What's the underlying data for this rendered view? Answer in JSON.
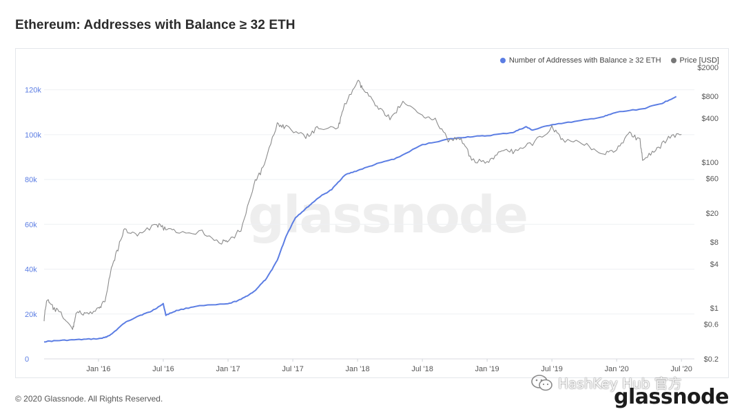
{
  "page": {
    "title": "Ethereum: Addresses with Balance ≥ 32 ETH",
    "footer": "© 2020 Glassnode. All Rights Reserved.",
    "brand": "glassnode",
    "watermark": "glassnode",
    "overlay_watermark": "HashKey Hub 官方"
  },
  "colors": {
    "addresses": "#5b7de3",
    "price": "#8a8a8a",
    "left_axis_text": "#5b7de3",
    "right_axis_text": "#555555"
  },
  "legend": [
    {
      "label": "Number of Addresses with Balance ≥ 32 ETH",
      "color": "#5b7de3"
    },
    {
      "label": "Price [USD]",
      "color": "#777777"
    }
  ],
  "chart_data": {
    "type": "line",
    "title": "Ethereum: Addresses with Balance ≥ 32 ETH",
    "legend_position": "top-right",
    "grid": "horizontal",
    "x_ticks": [
      "Jan '16",
      "Jul '16",
      "Jan '17",
      "Jul '17",
      "Jan '18",
      "Jul '18",
      "Jan '19",
      "Jul '19",
      "Jan '20",
      "Jul '20"
    ],
    "x_tick_values": [
      2016.0,
      2016.5,
      2017.0,
      2017.5,
      2018.0,
      2018.5,
      2019.0,
      2019.5,
      2020.0,
      2020.5
    ],
    "xlim": [
      2015.58,
      2020.6
    ],
    "y_left": {
      "label": "",
      "range": [
        0,
        130000
      ],
      "ticks": [
        0,
        20000,
        40000,
        60000,
        80000,
        100000,
        120000
      ],
      "tick_labels": [
        "0",
        "20k",
        "40k",
        "60k",
        "80k",
        "100k",
        "120k"
      ]
    },
    "y_right": {
      "label": "",
      "scale": "log",
      "range": [
        0.2,
        2000
      ],
      "ticks": [
        0.2,
        0.6,
        1,
        4,
        8,
        20,
        60,
        100,
        400,
        800,
        2000
      ],
      "tick_labels": [
        "$0.2",
        "$0.6",
        "$1",
        "$4",
        "$8",
        "$20",
        "$60",
        "$100",
        "$400",
        "$800",
        "$2000"
      ]
    },
    "series": [
      {
        "name": "Number of Addresses with Balance ≥ 32 ETH",
        "axis": "left",
        "color": "#5b7de3",
        "points": [
          [
            2015.58,
            7700
          ],
          [
            2015.7,
            8200
          ],
          [
            2015.85,
            8600
          ],
          [
            2016.0,
            9000
          ],
          [
            2016.05,
            9500
          ],
          [
            2016.1,
            11000
          ],
          [
            2016.2,
            16000
          ],
          [
            2016.3,
            19000
          ],
          [
            2016.4,
            21000
          ],
          [
            2016.5,
            24500
          ],
          [
            2016.52,
            19500
          ],
          [
            2016.6,
            21500
          ],
          [
            2016.75,
            23500
          ],
          [
            2017.0,
            24500
          ],
          [
            2017.1,
            26500
          ],
          [
            2017.2,
            30000
          ],
          [
            2017.3,
            36000
          ],
          [
            2017.38,
            44000
          ],
          [
            2017.45,
            55000
          ],
          [
            2017.52,
            63000
          ],
          [
            2017.62,
            68000
          ],
          [
            2017.7,
            72000
          ],
          [
            2017.8,
            75500
          ],
          [
            2017.9,
            82000
          ],
          [
            2018.0,
            84000
          ],
          [
            2018.15,
            87000
          ],
          [
            2018.3,
            89500
          ],
          [
            2018.5,
            95500
          ],
          [
            2018.7,
            98000
          ],
          [
            2018.85,
            99000
          ],
          [
            2019.0,
            99500
          ],
          [
            2019.2,
            101000
          ],
          [
            2019.3,
            103500
          ],
          [
            2019.35,
            102000
          ],
          [
            2019.5,
            104500
          ],
          [
            2019.7,
            106000
          ],
          [
            2019.9,
            108000
          ],
          [
            2020.0,
            110000
          ],
          [
            2020.2,
            111500
          ],
          [
            2020.35,
            114000
          ],
          [
            2020.46,
            117000
          ]
        ]
      },
      {
        "name": "Price [USD]",
        "axis": "right",
        "color": "#8a8a8a",
        "points": [
          [
            2015.58,
            0.7
          ],
          [
            2015.6,
            1.3
          ],
          [
            2015.65,
            1.0
          ],
          [
            2015.72,
            0.8
          ],
          [
            2015.8,
            0.5
          ],
          [
            2015.83,
            0.9
          ],
          [
            2015.9,
            0.8
          ],
          [
            2016.0,
            0.95
          ],
          [
            2016.05,
            1.3
          ],
          [
            2016.1,
            3.5
          ],
          [
            2016.15,
            6.5
          ],
          [
            2016.2,
            12
          ],
          [
            2016.3,
            10
          ],
          [
            2016.45,
            14
          ],
          [
            2016.52,
            12
          ],
          [
            2016.6,
            11
          ],
          [
            2016.8,
            11
          ],
          [
            2016.95,
            8
          ],
          [
            2017.0,
            8
          ],
          [
            2017.1,
            12
          ],
          [
            2017.2,
            50
          ],
          [
            2017.28,
            90
          ],
          [
            2017.38,
            340
          ],
          [
            2017.45,
            300
          ],
          [
            2017.6,
            220
          ],
          [
            2017.7,
            300
          ],
          [
            2017.85,
            300
          ],
          [
            2017.9,
            600
          ],
          [
            2018.0,
            1300
          ],
          [
            2018.05,
            950
          ],
          [
            2018.15,
            600
          ],
          [
            2018.25,
            400
          ],
          [
            2018.35,
            650
          ],
          [
            2018.5,
            450
          ],
          [
            2018.6,
            380
          ],
          [
            2018.7,
            200
          ],
          [
            2018.8,
            210
          ],
          [
            2018.88,
            110
          ],
          [
            2019.0,
            95
          ],
          [
            2019.1,
            140
          ],
          [
            2019.2,
            140
          ],
          [
            2019.35,
            180
          ],
          [
            2019.5,
            300
          ],
          [
            2019.58,
            200
          ],
          [
            2019.75,
            180
          ],
          [
            2019.9,
            130
          ],
          [
            2020.0,
            150
          ],
          [
            2020.1,
            250
          ],
          [
            2020.18,
            200
          ],
          [
            2020.2,
            110
          ],
          [
            2020.3,
            140
          ],
          [
            2020.4,
            220
          ],
          [
            2020.5,
            240
          ]
        ]
      }
    ]
  }
}
